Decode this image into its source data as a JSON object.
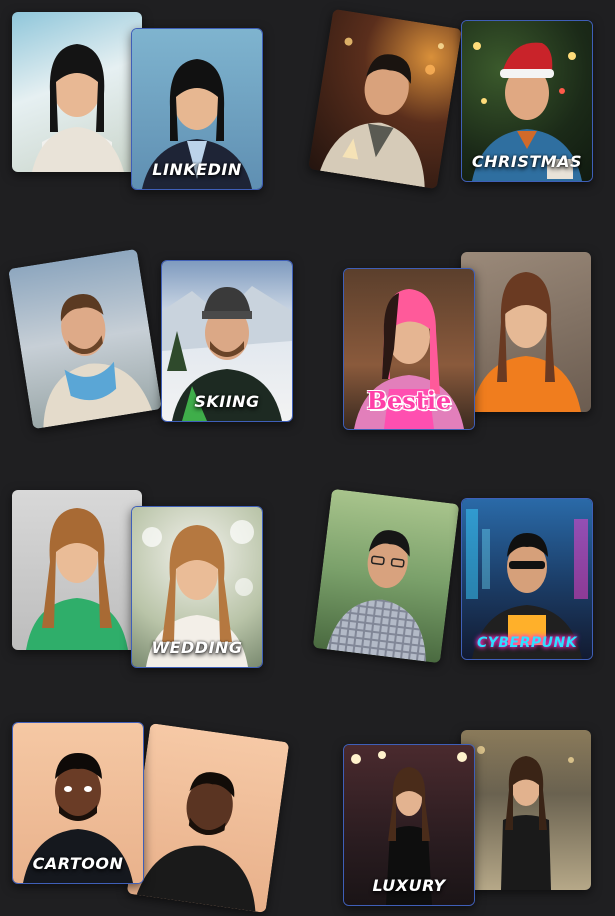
{
  "tiles": [
    {
      "label": "LINKEDIN",
      "style": "default"
    },
    {
      "label": "CHRISTMAS",
      "style": "default"
    },
    {
      "label": "SKIING",
      "style": "default"
    },
    {
      "label": "Bestie",
      "style": "bestie"
    },
    {
      "label": "WEDDING",
      "style": "default"
    },
    {
      "label": "CYBERPUNK",
      "style": "cyber"
    },
    {
      "label": "CARTOON",
      "style": "default"
    },
    {
      "label": "LUXURY",
      "style": "default"
    }
  ],
  "colors": {
    "background": "#1f1f21",
    "accent_border": "#3f5fb8",
    "label_text": "#ffffff",
    "bestie_text": "#ff3fa8",
    "cyberpunk_text": "#2fe0ff"
  }
}
